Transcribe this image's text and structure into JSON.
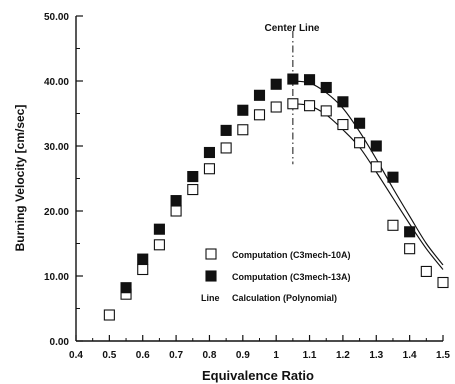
{
  "chart_data": {
    "type": "scatter",
    "xlabel": "Equivalence Ratio",
    "ylabel": "Burning Velocity [cm/sec]",
    "xlim": [
      0.4,
      1.5
    ],
    "ylim": [
      0,
      50
    ],
    "x_ticks": [
      "0.4",
      "0.5",
      "0.6",
      "0.7",
      "0.8",
      "0.9",
      "1",
      "1.1",
      "1.2",
      "1.3",
      "1.4",
      "1.5"
    ],
    "y_ticks": [
      "0.00",
      "10.00",
      "20.00",
      "30.00",
      "40.00",
      "50.00"
    ],
    "grid": false,
    "legend_position": "lower-right",
    "annotation": {
      "text": "Center Line",
      "x": 1.05
    },
    "series": [
      {
        "name": "Computation (C3mech-10A)",
        "marker": "open-square",
        "x": [
          0.5,
          0.55,
          0.6,
          0.65,
          0.7,
          0.75,
          0.8,
          0.85,
          0.9,
          0.95,
          1.0,
          1.05,
          1.1,
          1.15,
          1.2,
          1.25,
          1.3,
          1.35,
          1.4,
          1.45,
          1.5
        ],
        "y": [
          4.0,
          7.2,
          11.0,
          14.8,
          20.0,
          23.3,
          26.5,
          29.7,
          32.5,
          34.8,
          36.0,
          36.5,
          36.2,
          35.4,
          33.3,
          30.5,
          26.8,
          17.8,
          14.2,
          10.7,
          9.0
        ]
      },
      {
        "name": "Computation (C3mech-13A)",
        "marker": "filled-square",
        "x": [
          0.55,
          0.6,
          0.65,
          0.7,
          0.75,
          0.8,
          0.85,
          0.9,
          0.95,
          1.0,
          1.05,
          1.1,
          1.15,
          1.2,
          1.25,
          1.3,
          1.35,
          1.4
        ],
        "y": [
          8.2,
          12.6,
          17.2,
          21.6,
          25.3,
          29.0,
          32.4,
          35.5,
          37.8,
          39.5,
          40.3,
          40.2,
          39.0,
          36.8,
          33.5,
          30.0,
          25.2,
          16.8
        ]
      },
      {
        "name": "Calculation (Polynomial)",
        "legend_marker_text": "Line",
        "marker": "line",
        "x": [
          1.05,
          1.1,
          1.15,
          1.2,
          1.25,
          1.3,
          1.35,
          1.4,
          1.45,
          1.5
        ],
        "y": [
          40.0,
          39.7,
          38.2,
          35.8,
          32.2,
          28.0,
          23.5,
          19.2,
          15.0,
          11.7
        ]
      },
      {
        "name": "",
        "marker": "line",
        "x": [
          1.05,
          1.1,
          1.15,
          1.2,
          1.25,
          1.3,
          1.35,
          1.4,
          1.45,
          1.5
        ],
        "y": [
          36.5,
          36.2,
          34.8,
          32.5,
          29.8,
          26.0,
          22.0,
          18.0,
          14.2,
          11.0
        ]
      }
    ]
  }
}
